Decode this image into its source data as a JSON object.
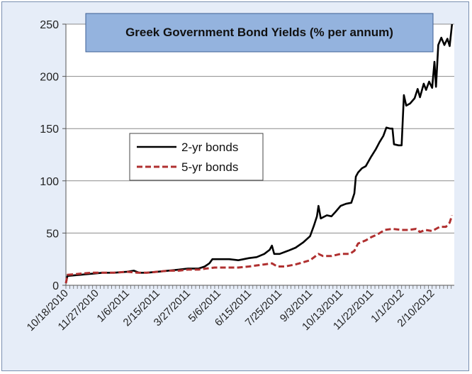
{
  "chart_data": {
    "type": "line",
    "title": "Greek Government Bond Yields (% per annum)",
    "xlabel": "",
    "ylabel": "",
    "ylim": [
      0,
      250
    ],
    "yticks": [
      0,
      50,
      100,
      150,
      200,
      250
    ],
    "xlim": [
      "2010-10-18",
      "2012-03-10"
    ],
    "xticks": [
      "10/18/2010",
      "11/27/2010",
      "1/6/2011",
      "2/15/2011",
      "3/27/2011",
      "5/6/2011",
      "6/15/2011",
      "7/25/2011",
      "9/3/2011",
      "10/13/2011",
      "11/22/2011",
      "1/1/2012",
      "2/10/2012"
    ],
    "grid": "horizontal",
    "legend_position": "center-left",
    "series": [
      {
        "name": "2-yr bonds",
        "color": "#000000",
        "style": "solid",
        "points": [
          [
            "2010-10-18",
            2
          ],
          [
            "2010-10-20",
            9
          ],
          [
            "2010-11-05",
            10
          ],
          [
            "2010-11-20",
            11
          ],
          [
            "2010-12-05",
            12
          ],
          [
            "2010-12-20",
            12
          ],
          [
            "2011-01-06",
            13
          ],
          [
            "2011-01-15",
            14
          ],
          [
            "2011-01-22",
            12
          ],
          [
            "2011-02-01",
            12
          ],
          [
            "2011-02-15",
            13
          ],
          [
            "2011-03-01",
            14
          ],
          [
            "2011-03-15",
            15
          ],
          [
            "2011-03-27",
            16
          ],
          [
            "2011-04-10",
            16
          ],
          [
            "2011-04-18",
            18
          ],
          [
            "2011-04-24",
            21
          ],
          [
            "2011-04-28",
            25
          ],
          [
            "2011-05-10",
            25
          ],
          [
            "2011-05-20",
            25
          ],
          [
            "2011-06-01",
            24
          ],
          [
            "2011-06-15",
            26
          ],
          [
            "2011-06-25",
            27
          ],
          [
            "2011-07-05",
            30
          ],
          [
            "2011-07-12",
            34
          ],
          [
            "2011-07-15",
            38
          ],
          [
            "2011-07-18",
            30
          ],
          [
            "2011-07-25",
            30
          ],
          [
            "2011-08-05",
            33
          ],
          [
            "2011-08-15",
            36
          ],
          [
            "2011-08-25",
            41
          ],
          [
            "2011-09-03",
            47
          ],
          [
            "2011-09-08",
            57
          ],
          [
            "2011-09-12",
            66
          ],
          [
            "2011-09-14",
            76
          ],
          [
            "2011-09-17",
            64
          ],
          [
            "2011-09-25",
            67
          ],
          [
            "2011-10-01",
            66
          ],
          [
            "2011-10-06",
            70
          ],
          [
            "2011-10-13",
            76
          ],
          [
            "2011-10-20",
            78
          ],
          [
            "2011-10-27",
            79
          ],
          [
            "2011-10-31",
            88
          ],
          [
            "2011-11-02",
            104
          ],
          [
            "2011-11-05",
            108
          ],
          [
            "2011-11-10",
            112
          ],
          [
            "2011-11-15",
            114
          ],
          [
            "2011-11-22",
            123
          ],
          [
            "2011-11-28",
            130
          ],
          [
            "2011-12-03",
            137
          ],
          [
            "2011-12-08",
            143
          ],
          [
            "2011-12-12",
            151
          ],
          [
            "2011-12-17",
            150
          ],
          [
            "2011-12-20",
            150
          ],
          [
            "2011-12-22",
            135
          ],
          [
            "2011-12-28",
            134
          ],
          [
            "2012-01-01",
            134
          ],
          [
            "2012-01-04",
            182
          ],
          [
            "2012-01-07",
            172
          ],
          [
            "2012-01-12",
            174
          ],
          [
            "2012-01-18",
            179
          ],
          [
            "2012-01-22",
            188
          ],
          [
            "2012-01-25",
            180
          ],
          [
            "2012-01-30",
            193
          ],
          [
            "2012-02-02",
            187
          ],
          [
            "2012-02-06",
            195
          ],
          [
            "2012-02-10",
            189
          ],
          [
            "2012-02-13",
            214
          ],
          [
            "2012-02-15",
            190
          ],
          [
            "2012-02-18",
            230
          ],
          [
            "2012-02-22",
            237
          ],
          [
            "2012-02-26",
            230
          ],
          [
            "2012-03-01",
            236
          ],
          [
            "2012-03-04",
            229
          ],
          [
            "2012-03-07",
            250
          ]
        ]
      },
      {
        "name": "5-yr bonds",
        "color": "#b03030",
        "style": "dashed",
        "points": [
          [
            "2010-10-18",
            2
          ],
          [
            "2010-10-20",
            10
          ],
          [
            "2010-11-05",
            11
          ],
          [
            "2010-11-20",
            12
          ],
          [
            "2010-12-05",
            12
          ],
          [
            "2010-12-20",
            12
          ],
          [
            "2011-01-06",
            13
          ],
          [
            "2011-01-20",
            12
          ],
          [
            "2011-02-01",
            12
          ],
          [
            "2011-02-15",
            13
          ],
          [
            "2011-03-01",
            14
          ],
          [
            "2011-03-15",
            14
          ],
          [
            "2011-03-27",
            15
          ],
          [
            "2011-04-10",
            15
          ],
          [
            "2011-04-20",
            16
          ],
          [
            "2011-05-01",
            17
          ],
          [
            "2011-05-15",
            17
          ],
          [
            "2011-06-01",
            17
          ],
          [
            "2011-06-15",
            18
          ],
          [
            "2011-06-25",
            19
          ],
          [
            "2011-07-05",
            20
          ],
          [
            "2011-07-15",
            21
          ],
          [
            "2011-07-22",
            18
          ],
          [
            "2011-08-01",
            18
          ],
          [
            "2011-08-15",
            20
          ],
          [
            "2011-08-25",
            22
          ],
          [
            "2011-09-03",
            24
          ],
          [
            "2011-09-14",
            30
          ],
          [
            "2011-09-20",
            28
          ],
          [
            "2011-10-01",
            28
          ],
          [
            "2011-10-13",
            30
          ],
          [
            "2011-10-25",
            30
          ],
          [
            "2011-10-31",
            33
          ],
          [
            "2011-11-05",
            40
          ],
          [
            "2011-11-15",
            43
          ],
          [
            "2011-11-22",
            46
          ],
          [
            "2011-12-01",
            49
          ],
          [
            "2011-12-10",
            53
          ],
          [
            "2011-12-20",
            54
          ],
          [
            "2012-01-01",
            53
          ],
          [
            "2012-01-10",
            53
          ],
          [
            "2012-01-20",
            54
          ],
          [
            "2012-01-25",
            51
          ],
          [
            "2012-02-01",
            53
          ],
          [
            "2012-02-10",
            52
          ],
          [
            "2012-02-15",
            54
          ],
          [
            "2012-02-20",
            56
          ],
          [
            "2012-02-28",
            56
          ],
          [
            "2012-03-04",
            60
          ],
          [
            "2012-03-07",
            67
          ]
        ]
      }
    ]
  }
}
